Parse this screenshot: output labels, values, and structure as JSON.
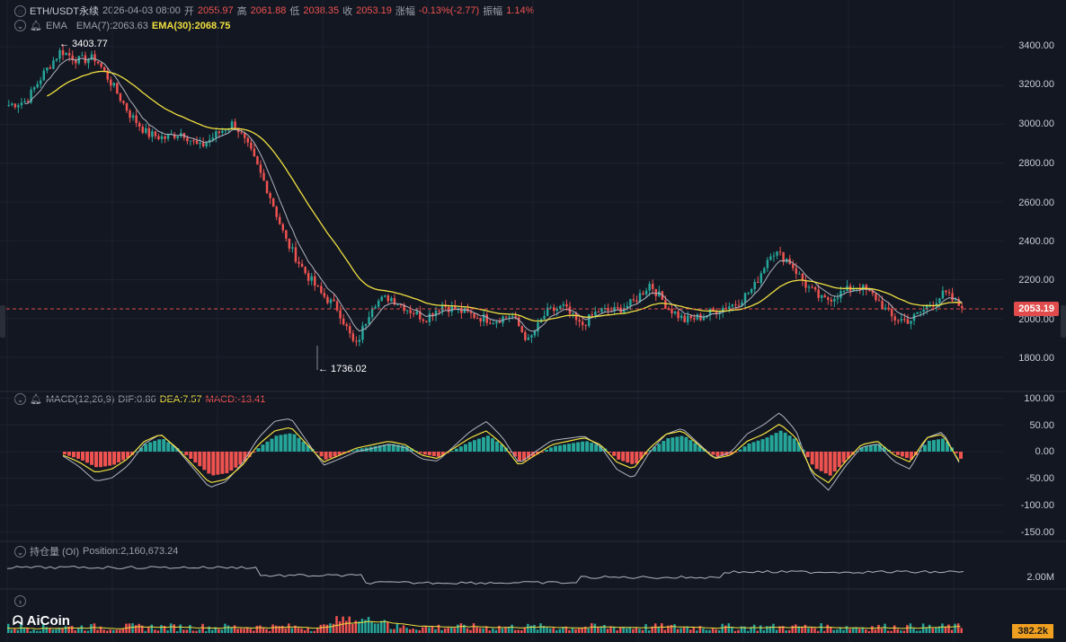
{
  "header": {
    "symbol": "ETH/USDT永续",
    "datetime": "2026-04-03 08:00",
    "open_label": "开",
    "open_value": "2055.97",
    "high_label": "高",
    "high_value": "2061.88",
    "low_label": "低",
    "low_value": "2038.35",
    "close_label": "收",
    "close_value": "2053.19",
    "change_label": "涨幅",
    "change_value": "-0.13%(-2.77)",
    "amp_label": "振幅",
    "amp_value": "1.14%"
  },
  "ema_legend": {
    "name": "EMA",
    "ema7": "EMA(7):2063.63",
    "ema30": "EMA(30):2068.75"
  },
  "macd_legend": {
    "name": "MACD(12,26,9)",
    "dif": "DIF:0.86",
    "dea": "DEA:7.57",
    "macd": "MACD:-13.41"
  },
  "oi_legend": {
    "name": "持仓量 (OI)",
    "position": "Position:2,160,673.24"
  },
  "price_axis": [
    "3400.00",
    "3200.00",
    "3000.00",
    "2800.00",
    "2600.00",
    "2400.00",
    "2200.00",
    "2000.00",
    "1800.00"
  ],
  "macd_axis": [
    "100.00",
    "50.00",
    "0.00",
    "-50.00",
    "-100.00",
    "-150.00"
  ],
  "oi_axis": "2.00M",
  "current_price": "2053.19",
  "volume_tag": "382.2k",
  "annotations": {
    "high": "← 3403.77",
    "low": "← 1736.02"
  },
  "logo": "AiCoin",
  "colors": {
    "background": "#131722",
    "up": "#26a69a",
    "down": "#ef5350",
    "ema7": "#b0b4c0",
    "ema30": "#f0e040",
    "price_tag": "#e04b4b",
    "volume_tag": "#f0a020"
  },
  "chart_data": [
    {
      "type": "line",
      "name": "ETH/USDT price (approx. close path)",
      "y_axis": "price",
      "ylim": [
        1700,
        3450
      ],
      "close_series": [
        3100,
        3120,
        3260,
        3380,
        3330,
        3340,
        3200,
        3050,
        2950,
        2930,
        2960,
        2880,
        2950,
        3010,
        2850,
        2650,
        2400,
        2250,
        2130,
        2050,
        1850,
        2080,
        2110,
        2050,
        2000,
        2070,
        2040,
        2010,
        1990,
        2020,
        1880,
        2030,
        2060,
        1960,
        2040,
        2040,
        2080,
        2180,
        2060,
        1990,
        2010,
        2050,
        2080,
        2160,
        2350,
        2300,
        2170,
        2090,
        2130,
        2170,
        2110,
        2000,
        1990,
        2060,
        2130,
        2053.19
      ],
      "annotations": {
        "max": 3403.77,
        "min": 1736.02,
        "last": 2053.19
      }
    },
    {
      "type": "bar",
      "name": "MACD(12,26,9)",
      "ylim": [
        -160,
        105
      ],
      "values": [
        -5,
        -15,
        -30,
        -25,
        -10,
        15,
        25,
        5,
        -20,
        -45,
        -40,
        -20,
        10,
        30,
        35,
        10,
        -15,
        -5,
        5,
        10,
        15,
        10,
        -5,
        -10,
        5,
        20,
        30,
        10,
        -20,
        -5,
        10,
        15,
        20,
        10,
        -15,
        -25,
        5,
        25,
        30,
        10,
        -10,
        -5,
        15,
        25,
        40,
        20,
        -30,
        -45,
        -15,
        10,
        15,
        -5,
        -15,
        20,
        25,
        -13.41
      ],
      "latest": {
        "DIF": 0.86,
        "DEA": 7.57,
        "MACD": -13.41
      }
    }
  ]
}
